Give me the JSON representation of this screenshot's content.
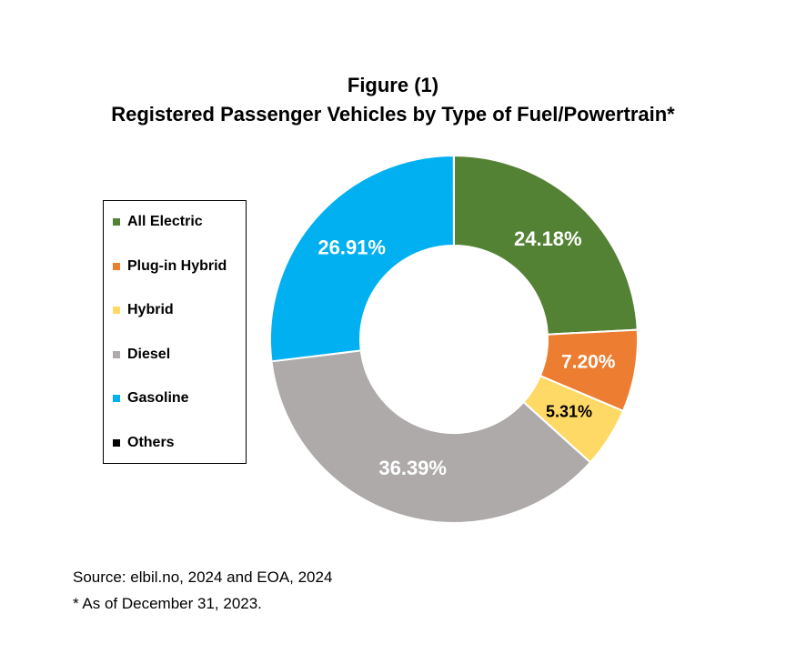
{
  "chart_data": {
    "type": "donut",
    "title": "Figure (1)",
    "subtitle": "Registered Passenger Vehicles by Type of Fuel/Powertrain*",
    "slices": [
      {
        "name": "All Electric",
        "value": 24.18,
        "label": "24.18%",
        "color": "#548235"
      },
      {
        "name": "Plug-in Hybrid",
        "value": 7.2,
        "label": "7.20%",
        "color": "#ED7D31"
      },
      {
        "name": "Hybrid",
        "value": 5.31,
        "label": "5.31%",
        "color": "#FFD966"
      },
      {
        "name": "Diesel",
        "value": 36.39,
        "label": "36.39%",
        "color": "#AEAAAA"
      },
      {
        "name": "Gasoline",
        "value": 26.91,
        "label": "26.91%",
        "color": "#00B0F0"
      },
      {
        "name": "Others",
        "value": 0.01,
        "label": "",
        "color": "#000000"
      }
    ],
    "legend_position": "left"
  },
  "notes": {
    "source": "Source: elbil.no,  2024 and EOA, 2024",
    "footnote": "* As of December 31, 2023."
  }
}
